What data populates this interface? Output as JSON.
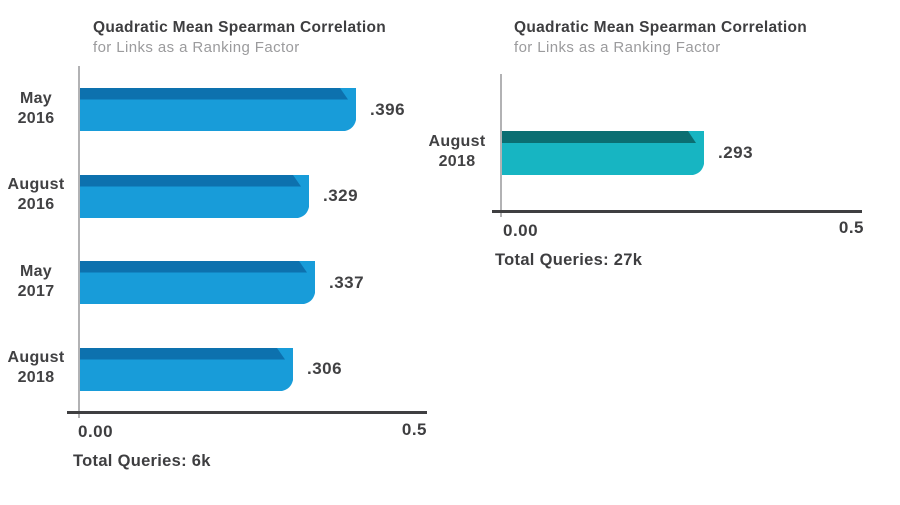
{
  "chart_data": [
    {
      "type": "bar",
      "orientation": "horizontal",
      "title": "Quadratic Mean Spearman Correlation",
      "subtitle": "for Links as a Ranking Factor",
      "categories": [
        "May 2016",
        "August 2016",
        "May 2017",
        "August 2018"
      ],
      "values": [
        0.396,
        0.329,
        0.337,
        0.306
      ],
      "value_labels": [
        ".396",
        ".329",
        ".337",
        ".306"
      ],
      "rows": [
        {
          "label_lines": [
            "May",
            "2016"
          ],
          "value": 0.396,
          "value_label": ".396"
        },
        {
          "label_lines": [
            "August",
            "2016"
          ],
          "value": 0.329,
          "value_label": ".329"
        },
        {
          "label_lines": [
            "May",
            "2017"
          ],
          "value": 0.337,
          "value_label": ".337"
        },
        {
          "label_lines": [
            "August",
            "2018"
          ],
          "value": 0.306,
          "value_label": ".306"
        }
      ],
      "xlim": [
        0,
        0.5
      ],
      "tick_min": "0.00",
      "tick_max": "0.5",
      "caption": "Total Queries: 6k",
      "grid": false,
      "legend": "none",
      "bar_color": "#189cd9",
      "bar_top_color": "#0d71ae"
    },
    {
      "type": "bar",
      "orientation": "horizontal",
      "title": "Quadratic Mean Spearman Correlation",
      "subtitle": "for Links as a Ranking Factor",
      "categories": [
        "August 2018"
      ],
      "values": [
        0.293
      ],
      "value_labels": [
        ".293"
      ],
      "rows": [
        {
          "label_lines": [
            "August",
            "2018"
          ],
          "value": 0.293,
          "value_label": ".293"
        }
      ],
      "xlim": [
        0,
        0.5
      ],
      "tick_min": "0.00",
      "tick_max": "0.5",
      "caption": "Total Queries: 27k",
      "grid": false,
      "legend": "none",
      "bar_color": "#17b5c2",
      "bar_top_color": "#0b6e72"
    }
  ],
  "colors": {
    "background": "#ffffff",
    "text_dark": "#3e3e40",
    "text_gray": "#9b9b9d",
    "axis_dark": "#3f3f41",
    "axis_light": "#b2b2b4",
    "left_bar": "#189cd9",
    "left_bar_top": "#0d71ae",
    "right_bar": "#17b5c2",
    "right_bar_top": "#0b6e72"
  }
}
